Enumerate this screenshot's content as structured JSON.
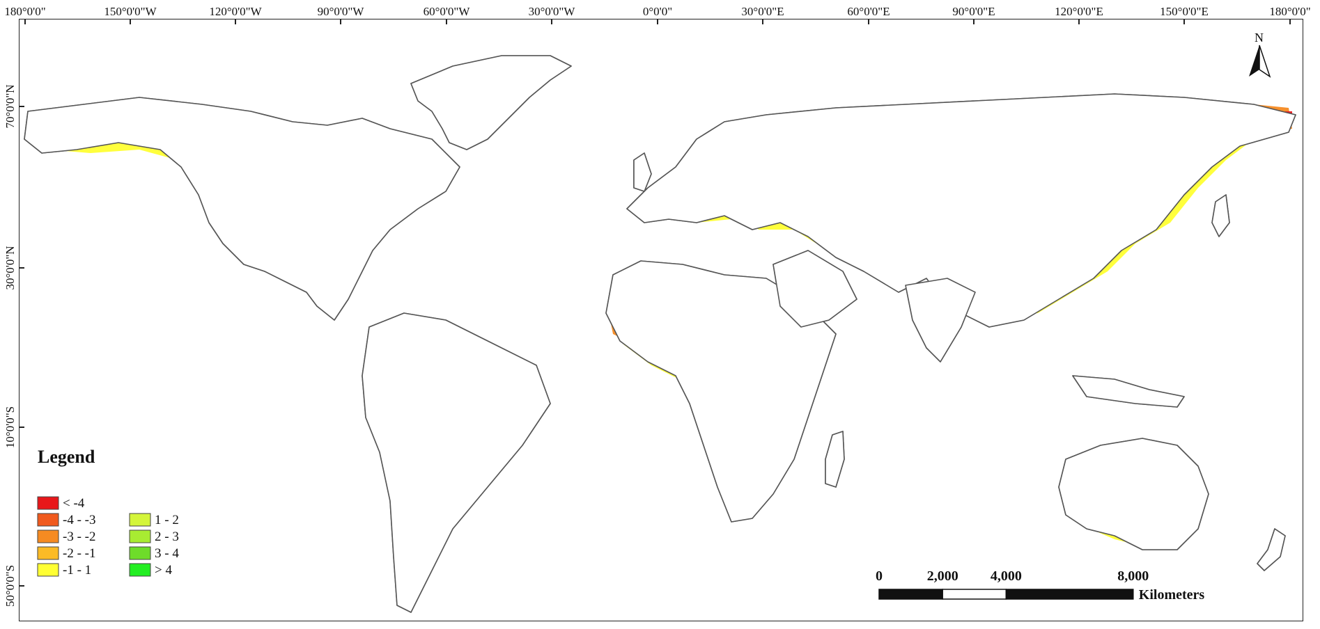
{
  "top_ticks": [
    "180°0'0\"",
    "150°0'0\"W",
    "120°0'0\"W",
    "90°0'0\"W",
    "60°0'0\"W",
    "30°0'0\"W",
    "0°0'0\"",
    "30°0'0\"E",
    "60°0'0\"E",
    "90°0'0\"E",
    "120°0'0\"E",
    "150°0'0\"E",
    "180°0'0\""
  ],
  "left_ticks": [
    "70°0'0\"N",
    "30°0'0\"N",
    "10°0'0\"S",
    "50°0'0\"S"
  ],
  "north_arrow": {
    "label": "N"
  },
  "legend": {
    "title": "Legend",
    "classes": [
      {
        "label": "< -4",
        "color": "#e8171a"
      },
      {
        "label": "-4 - -3",
        "color": "#f05a1e"
      },
      {
        "label": "-3 - -2",
        "color": "#f68b22"
      },
      {
        "label": "-2 - -1",
        "color": "#fbbb26"
      },
      {
        "label": "-1 - 1",
        "color": "#ffff33"
      },
      {
        "label": "1 - 2",
        "color": "#d4f53a"
      },
      {
        "label": "2 - 3",
        "color": "#a8ec32"
      },
      {
        "label": "3 - 4",
        "color": "#6edc2a"
      },
      {
        "label": "> 4",
        "color": "#22ee22"
      }
    ]
  },
  "scale_bar": {
    "ticks": [
      "0",
      "2,000",
      "4,000",
      "8,000"
    ],
    "unit": "Kilometers"
  }
}
